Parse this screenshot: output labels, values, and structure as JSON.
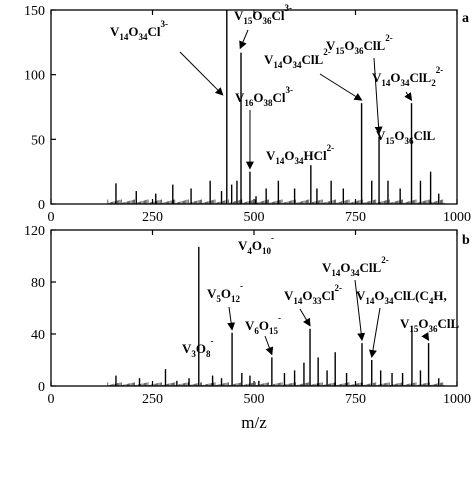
{
  "chart_data": [
    {
      "type": "bar",
      "panel_label": "a",
      "xlabel": "",
      "ylabel": "",
      "xlim": [
        0,
        1000
      ],
      "ylim": [
        0,
        150
      ],
      "xticks": [
        0,
        250,
        500,
        750,
        1000
      ],
      "yticks": [
        0,
        50,
        100,
        150
      ],
      "grid": false,
      "peaks": [
        {
          "x": 160,
          "y": 16
        },
        {
          "x": 210,
          "y": 10
        },
        {
          "x": 258,
          "y": 8
        },
        {
          "x": 300,
          "y": 15
        },
        {
          "x": 345,
          "y": 12
        },
        {
          "x": 392,
          "y": 18
        },
        {
          "x": 420,
          "y": 10
        },
        {
          "x": 433,
          "y": 150
        },
        {
          "x": 445,
          "y": 15
        },
        {
          "x": 458,
          "y": 18
        },
        {
          "x": 468,
          "y": 117
        },
        {
          "x": 490,
          "y": 25
        },
        {
          "x": 505,
          "y": 6
        },
        {
          "x": 530,
          "y": 12
        },
        {
          "x": 560,
          "y": 18
        },
        {
          "x": 600,
          "y": 12
        },
        {
          "x": 640,
          "y": 30
        },
        {
          "x": 655,
          "y": 12
        },
        {
          "x": 690,
          "y": 18
        },
        {
          "x": 720,
          "y": 12
        },
        {
          "x": 765,
          "y": 78
        },
        {
          "x": 790,
          "y": 18
        },
        {
          "x": 808,
          "y": 52
        },
        {
          "x": 830,
          "y": 18
        },
        {
          "x": 860,
          "y": 12
        },
        {
          "x": 888,
          "y": 78
        },
        {
          "x": 910,
          "y": 18
        },
        {
          "x": 935,
          "y": 25
        },
        {
          "x": 955,
          "y": 8
        }
      ],
      "annotations": [
        {
          "parts": [
            [
              "V",
              ""
            ],
            [
              "14",
              "sub"
            ],
            [
              "O",
              ""
            ],
            [
              "34",
              "sub"
            ],
            [
              "Cl",
              ""
            ],
            [
              "3-",
              "sup"
            ]
          ],
          "peak_x": 423,
          "peak_y": 82
        },
        {
          "parts": [
            [
              "V",
              ""
            ],
            [
              "15",
              "sub"
            ],
            [
              "O",
              ""
            ],
            [
              "36",
              "sub"
            ],
            [
              "Cl",
              ""
            ],
            [
              "3-",
              "sup"
            ]
          ],
          "peak_x": 466,
          "peak_y": 118
        },
        {
          "parts": [
            [
              "V",
              ""
            ],
            [
              "16",
              "sub"
            ],
            [
              "O",
              ""
            ],
            [
              "38",
              "sub"
            ],
            [
              "Cl",
              ""
            ],
            [
              "3-",
              "sup"
            ]
          ],
          "peak_x": 490,
          "peak_y": 25
        },
        {
          "parts": [
            [
              "V",
              ""
            ],
            [
              "14",
              "sub"
            ],
            [
              "O",
              ""
            ],
            [
              "34",
              "sub"
            ],
            [
              "ClL",
              ""
            ],
            [
              "2-",
              "sup"
            ]
          ],
          "peak_x": 765,
          "peak_y": 78
        },
        {
          "parts": [
            [
              "V",
              ""
            ],
            [
              "15",
              "sub"
            ],
            [
              "O",
              ""
            ],
            [
              "36",
              "sub"
            ],
            [
              "ClL",
              ""
            ],
            [
              "2-",
              "sup"
            ]
          ],
          "peak_x": 808,
          "peak_y": 52
        },
        {
          "parts": [
            [
              "V",
              ""
            ],
            [
              "14",
              "sub"
            ],
            [
              "O",
              ""
            ],
            [
              "34",
              "sub"
            ],
            [
              "ClL",
              ""
            ],
            [
              "2",
              "sub"
            ],
            [
              "2-",
              "sup"
            ]
          ],
          "peak_x": 888,
          "peak_y": 78
        },
        {
          "parts": [
            [
              "V",
              ""
            ],
            [
              "14",
              "sub"
            ],
            [
              "O",
              ""
            ],
            [
              "34",
              "sub"
            ],
            [
              "HCl",
              ""
            ],
            [
              "2-",
              "sup"
            ]
          ],
          "peak_x": null,
          "peak_y": null
        },
        {
          "parts": [
            [
              "V",
              ""
            ],
            [
              "15",
              "sub"
            ],
            [
              "O",
              ""
            ],
            [
              "36",
              "sub"
            ],
            [
              "ClL",
              ""
            ]
          ],
          "peak_x": null,
          "peak_y": null
        }
      ]
    },
    {
      "type": "bar",
      "panel_label": "b",
      "xlabel": "m/z",
      "ylabel": "",
      "xlim": [
        0,
        1000
      ],
      "ylim": [
        0,
        120
      ],
      "xticks": [
        0,
        250,
        500,
        750,
        1000
      ],
      "yticks": [
        0,
        40,
        80,
        120
      ],
      "grid": false,
      "peaks": [
        {
          "x": 160,
          "y": 8
        },
        {
          "x": 218,
          "y": 6
        },
        {
          "x": 282,
          "y": 13
        },
        {
          "x": 310,
          "y": 4
        },
        {
          "x": 340,
          "y": 6
        },
        {
          "x": 364,
          "y": 107
        },
        {
          "x": 398,
          "y": 8
        },
        {
          "x": 420,
          "y": 6
        },
        {
          "x": 446,
          "y": 41
        },
        {
          "x": 470,
          "y": 10
        },
        {
          "x": 490,
          "y": 8
        },
        {
          "x": 512,
          "y": 4
        },
        {
          "x": 544,
          "y": 22
        },
        {
          "x": 575,
          "y": 10
        },
        {
          "x": 600,
          "y": 12
        },
        {
          "x": 623,
          "y": 18
        },
        {
          "x": 638,
          "y": 44
        },
        {
          "x": 658,
          "y": 22
        },
        {
          "x": 680,
          "y": 12
        },
        {
          "x": 700,
          "y": 26
        },
        {
          "x": 728,
          "y": 10
        },
        {
          "x": 766,
          "y": 33
        },
        {
          "x": 790,
          "y": 20
        },
        {
          "x": 812,
          "y": 12
        },
        {
          "x": 840,
          "y": 10
        },
        {
          "x": 866,
          "y": 10
        },
        {
          "x": 889,
          "y": 46
        },
        {
          "x": 910,
          "y": 12
        },
        {
          "x": 930,
          "y": 33
        },
        {
          "x": 955,
          "y": 6
        }
      ],
      "annotations": [
        {
          "parts": [
            [
              "V",
              ""
            ],
            [
              "4",
              "sub"
            ],
            [
              "O",
              ""
            ],
            [
              "10",
              "sub"
            ],
            [
              "-",
              "sup"
            ]
          ],
          "peak_x": null,
          "peak_y": null
        },
        {
          "parts": [
            [
              "V",
              ""
            ],
            [
              "3",
              "sub"
            ],
            [
              "O",
              ""
            ],
            [
              "8",
              "sub"
            ],
            [
              "-",
              "sup"
            ]
          ],
          "peak_x": null,
          "peak_y": null
        },
        {
          "parts": [
            [
              "V",
              ""
            ],
            [
              "5",
              "sub"
            ],
            [
              "O",
              ""
            ],
            [
              "12",
              "sub"
            ],
            [
              "-",
              "sup"
            ]
          ],
          "peak_x": 446,
          "peak_y": 41
        },
        {
          "parts": [
            [
              "V",
              ""
            ],
            [
              "6",
              "sub"
            ],
            [
              "O",
              ""
            ],
            [
              "15",
              "sub"
            ],
            [
              "-",
              "sup"
            ]
          ],
          "peak_x": 544,
          "peak_y": 22
        },
        {
          "parts": [
            [
              "V",
              ""
            ],
            [
              "14",
              "sub"
            ],
            [
              "O",
              ""
            ],
            [
              "33",
              "sub"
            ],
            [
              "Cl",
              ""
            ],
            [
              "2-",
              "sup"
            ]
          ],
          "peak_x": 638,
          "peak_y": 44
        },
        {
          "parts": [
            [
              "V",
              ""
            ],
            [
              "14",
              "sub"
            ],
            [
              "O",
              ""
            ],
            [
              "34",
              "sub"
            ],
            [
              "ClL",
              ""
            ],
            [
              "2-",
              "sup"
            ]
          ],
          "peak_x": 766,
          "peak_y": 33
        },
        {
          "parts": [
            [
              "V",
              ""
            ],
            [
              "14",
              "sub"
            ],
            [
              "O",
              ""
            ],
            [
              "34",
              "sub"
            ],
            [
              "ClL(C",
              ""
            ],
            [
              "4",
              "sub"
            ],
            [
              "H,",
              ""
            ]
          ],
          "peak_x": 790,
          "peak_y": 20
        },
        {
          "parts": [
            [
              "V",
              ""
            ],
            [
              "15",
              "sub"
            ],
            [
              "O",
              ""
            ],
            [
              "36",
              "sub"
            ],
            [
              "ClL",
              ""
            ]
          ],
          "peak_x": 930,
          "peak_y": 33
        }
      ]
    }
  ]
}
